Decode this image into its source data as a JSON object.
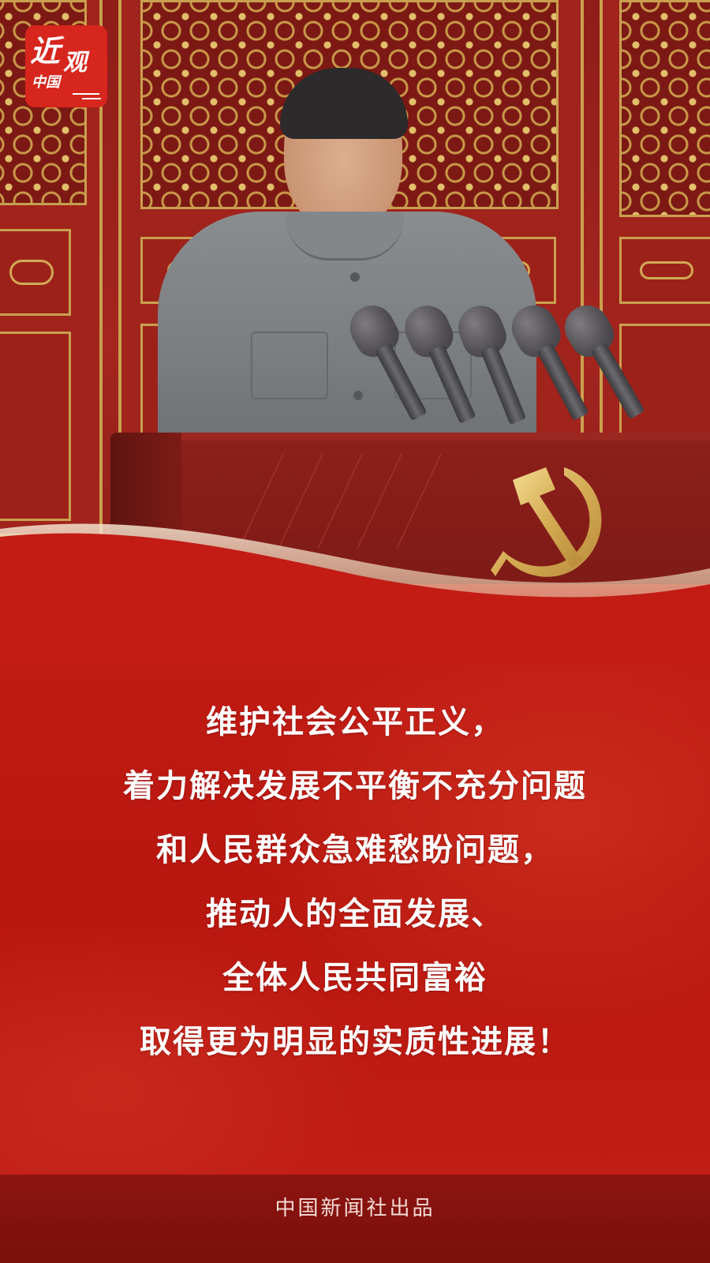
{
  "logo": {
    "char_1": "近",
    "char_2": "观",
    "subtitle": "中国"
  },
  "quote": {
    "lines": [
      "维护社会公平正义，",
      "着力解决发展不平衡不充分问题",
      "和人民群众急难愁盼问题，",
      "推动人的全面发展、",
      "全体人民共同富裕",
      "取得更为明显的实质性进展！"
    ]
  },
  "footer": {
    "credit": "中国新闻社出品"
  },
  "colors": {
    "brand_red": "#c21c15",
    "gold": "#c9a04f",
    "footer_red": "#7a0f0c"
  }
}
